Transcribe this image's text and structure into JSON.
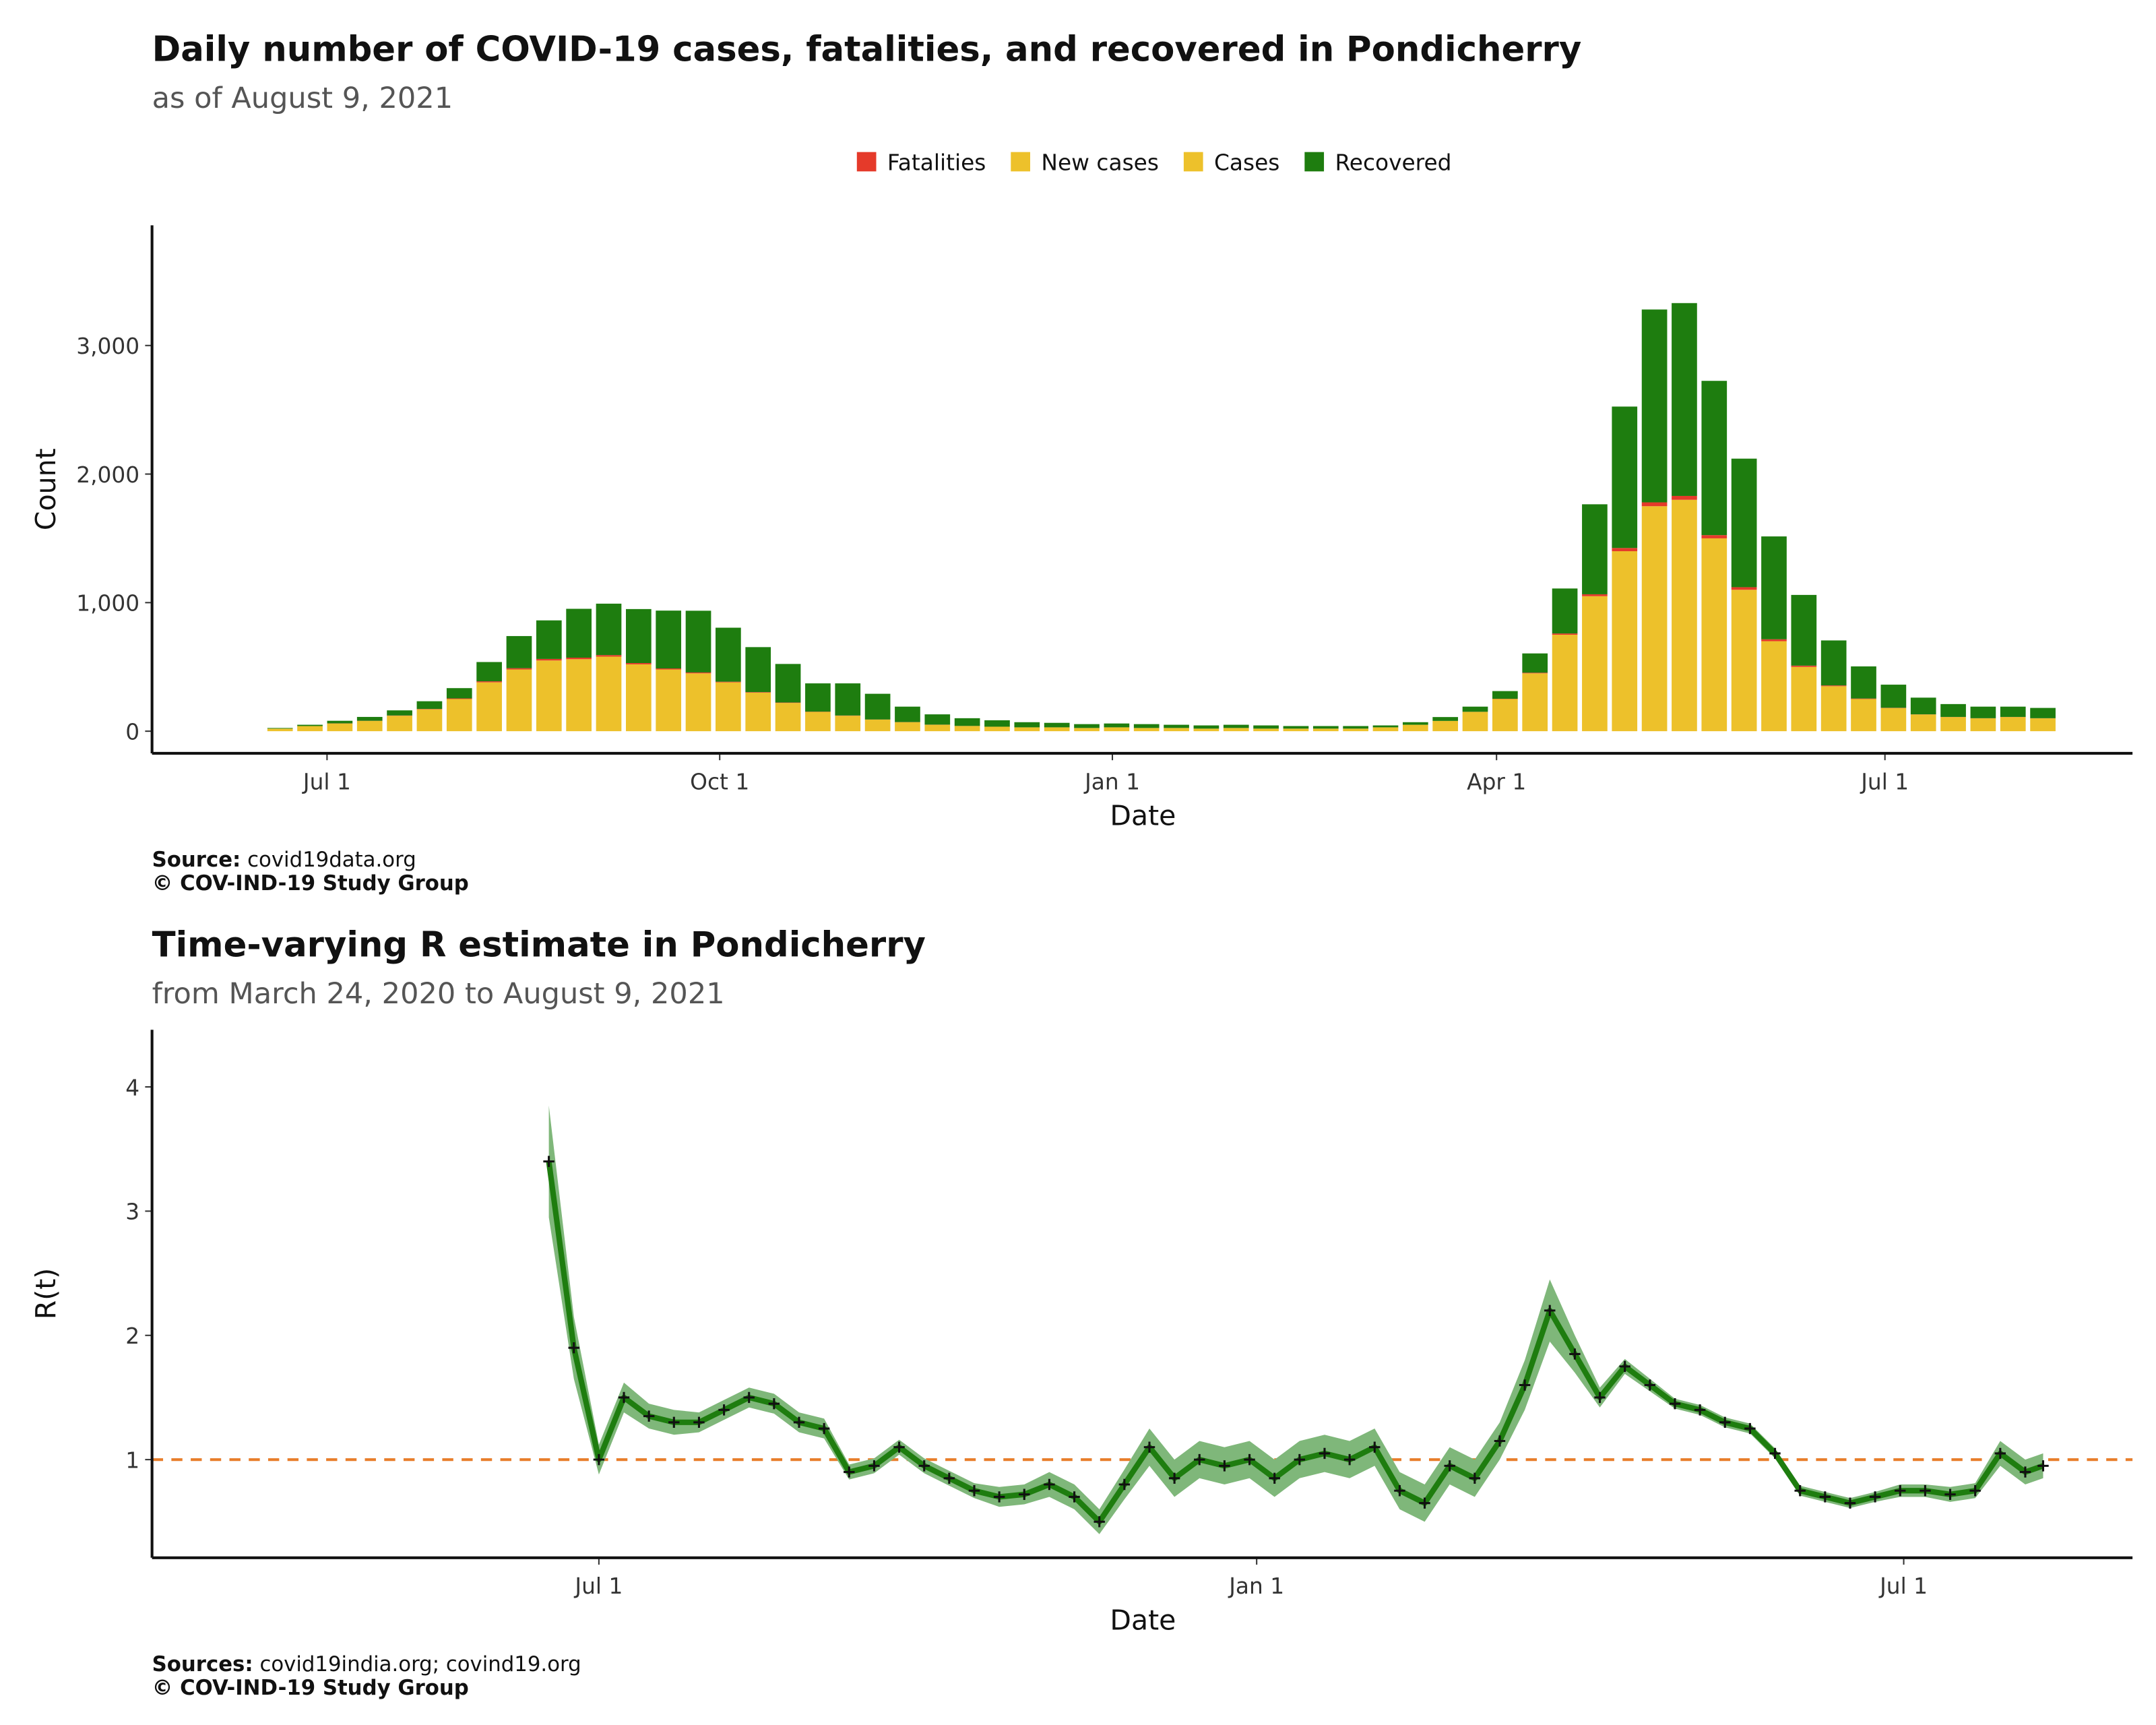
{
  "chart_data": [
    {
      "type": "bar",
      "stacked": true,
      "title": "Daily number of COVID-19 cases, fatalities, and recovered in Pondicherry",
      "subtitle": "as of August  9, 2021",
      "xlabel": "Date",
      "ylabel": "Count",
      "caption_bold": "Source:",
      "caption": "covid19data.org",
      "credit": "© COV-IND-19 Study Group",
      "legend": [
        {
          "name": "Fatalities",
          "color": "#e53a2a"
        },
        {
          "name": "New cases",
          "color": "#edc12b"
        },
        {
          "name": "Cases",
          "color": "#edc12b"
        },
        {
          "name": "Recovered",
          "color": "#1e7d0f"
        }
      ],
      "x": [
        "2020-06-20",
        "2020-06-27",
        "2020-07-04",
        "2020-07-11",
        "2020-07-18",
        "2020-07-25",
        "2020-08-01",
        "2020-08-08",
        "2020-08-15",
        "2020-08-22",
        "2020-08-29",
        "2020-09-05",
        "2020-09-12",
        "2020-09-19",
        "2020-09-26",
        "2020-10-03",
        "2020-10-10",
        "2020-10-17",
        "2020-10-24",
        "2020-10-31",
        "2020-11-07",
        "2020-11-14",
        "2020-11-21",
        "2020-11-28",
        "2020-12-05",
        "2020-12-12",
        "2020-12-19",
        "2020-12-26",
        "2021-01-02",
        "2021-01-09",
        "2021-01-16",
        "2021-01-23",
        "2021-01-30",
        "2021-02-06",
        "2021-02-13",
        "2021-02-20",
        "2021-02-27",
        "2021-03-06",
        "2021-03-13",
        "2021-03-20",
        "2021-03-27",
        "2021-04-03",
        "2021-04-10",
        "2021-04-17",
        "2021-04-24",
        "2021-05-01",
        "2021-05-08",
        "2021-05-15",
        "2021-05-22",
        "2021-05-29",
        "2021-06-05",
        "2021-06-12",
        "2021-06-19",
        "2021-06-26",
        "2021-07-03",
        "2021-07-10",
        "2021-07-17",
        "2021-07-24",
        "2021-07-31",
        "2021-08-07"
      ],
      "series": [
        {
          "name": "Cases",
          "color": "#edc12b",
          "values": [
            20,
            40,
            60,
            80,
            120,
            170,
            250,
            380,
            480,
            550,
            560,
            580,
            520,
            480,
            450,
            380,
            300,
            220,
            150,
            120,
            90,
            70,
            50,
            40,
            35,
            30,
            30,
            25,
            30,
            25,
            25,
            20,
            25,
            20,
            20,
            20,
            20,
            30,
            50,
            80,
            150,
            250,
            450,
            750,
            1050,
            1400,
            1750,
            1800,
            1500,
            1100,
            700,
            500,
            350,
            250,
            180,
            130,
            110,
            100,
            110,
            100
          ]
        },
        {
          "name": "Fatalities",
          "color": "#e53a2a",
          "values": [
            0,
            0,
            1,
            1,
            2,
            3,
            5,
            8,
            10,
            12,
            12,
            12,
            10,
            8,
            7,
            5,
            4,
            3,
            2,
            2,
            1,
            1,
            1,
            1,
            0,
            0,
            0,
            0,
            0,
            0,
            0,
            0,
            0,
            0,
            0,
            0,
            0,
            0,
            0,
            0,
            1,
            2,
            5,
            10,
            15,
            25,
            30,
            30,
            25,
            20,
            15,
            10,
            6,
            4,
            2,
            1,
            1,
            1,
            1,
            1
          ]
        },
        {
          "name": "Recovered",
          "color": "#1e7d0f",
          "values": [
            5,
            10,
            20,
            30,
            40,
            60,
            80,
            150,
            250,
            300,
            380,
            400,
            420,
            450,
            480,
            420,
            350,
            300,
            220,
            250,
            200,
            120,
            80,
            60,
            50,
            40,
            35,
            30,
            30,
            30,
            25,
            25,
            25,
            25,
            20,
            20,
            20,
            15,
            20,
            30,
            40,
            60,
            150,
            350,
            700,
            1100,
            1500,
            1500,
            1200,
            1000,
            800,
            550,
            350,
            250,
            180,
            130,
            100,
            90,
            80,
            80
          ]
        }
      ],
      "xlim": [
        "2020-05-21",
        "2021-08-28"
      ],
      "ylim": [
        -172,
        3935
      ],
      "xticks": [
        {
          "value": "2020-07-01",
          "label": "Jul 1"
        },
        {
          "value": "2020-10-01",
          "label": "Oct 1"
        },
        {
          "value": "2021-01-01",
          "label": "Jan 1"
        },
        {
          "value": "2021-04-01",
          "label": "Apr 1"
        },
        {
          "value": "2021-07-01",
          "label": "Jul 1"
        }
      ],
      "yticks": [
        0,
        {
          "value": 1000,
          "label": "1,000"
        },
        {
          "value": 2000,
          "label": "2,000"
        },
        {
          "value": 3000,
          "label": "3,000"
        }
      ]
    },
    {
      "type": "line",
      "title": "Time-varying R estimate in Pondicherry",
      "subtitle": "from March 24, 2020 to August  9, 2021",
      "xlabel": "Date",
      "ylabel": "R(t)",
      "caption_bold": "Sources:",
      "caption": "covid19india.org; covind19.org",
      "credit": "© COV-IND-19 Study Group",
      "hline": {
        "value": 1,
        "color": "#e87d2a"
      },
      "x": [
        "2020-06-17",
        "2020-06-24",
        "2020-07-01",
        "2020-07-08",
        "2020-07-15",
        "2020-07-22",
        "2020-07-29",
        "2020-08-05",
        "2020-08-12",
        "2020-08-19",
        "2020-08-26",
        "2020-09-02",
        "2020-09-09",
        "2020-09-16",
        "2020-09-23",
        "2020-09-30",
        "2020-10-07",
        "2020-10-14",
        "2020-10-21",
        "2020-10-28",
        "2020-11-04",
        "2020-11-11",
        "2020-11-18",
        "2020-11-25",
        "2020-12-02",
        "2020-12-09",
        "2020-12-16",
        "2020-12-23",
        "2020-12-30",
        "2021-01-06",
        "2021-01-13",
        "2021-01-20",
        "2021-01-27",
        "2021-02-03",
        "2021-02-10",
        "2021-02-17",
        "2021-02-24",
        "2021-03-03",
        "2021-03-10",
        "2021-03-17",
        "2021-03-24",
        "2021-03-31",
        "2021-04-07",
        "2021-04-14",
        "2021-04-21",
        "2021-04-28",
        "2021-05-05",
        "2021-05-12",
        "2021-05-19",
        "2021-05-26",
        "2021-06-02",
        "2021-06-09",
        "2021-06-16",
        "2021-06-23",
        "2021-06-30",
        "2021-07-07",
        "2021-07-14",
        "2021-07-21",
        "2021-07-28",
        "2021-08-04",
        "2021-08-09"
      ],
      "series": [
        {
          "color": "#1e7d0f",
          "band_color": "#7fb77a",
          "marker_color": "#111111",
          "values": [
            3.4,
            1.9,
            1.0,
            1.5,
            1.35,
            1.3,
            1.3,
            1.4,
            1.5,
            1.45,
            1.3,
            1.25,
            0.9,
            0.95,
            1.1,
            0.95,
            0.85,
            0.75,
            0.7,
            0.72,
            0.8,
            0.7,
            0.5,
            0.8,
            1.1,
            0.85,
            1.0,
            0.95,
            1.0,
            0.85,
            1.0,
            1.05,
            1.0,
            1.1,
            0.75,
            0.65,
            0.95,
            0.85,
            1.15,
            1.6,
            2.2,
            1.85,
            1.5,
            1.75,
            1.6,
            1.45,
            1.4,
            1.3,
            1.25,
            1.05,
            0.75,
            0.7,
            0.65,
            0.7,
            0.75,
            0.75,
            0.72,
            0.75,
            1.05,
            0.9,
            0.95
          ],
          "lower": [
            2.95,
            1.65,
            0.88,
            1.38,
            1.25,
            1.2,
            1.22,
            1.32,
            1.42,
            1.37,
            1.22,
            1.17,
            0.84,
            0.89,
            1.04,
            0.89,
            0.79,
            0.69,
            0.62,
            0.64,
            0.7,
            0.6,
            0.4,
            0.68,
            0.95,
            0.7,
            0.85,
            0.8,
            0.85,
            0.7,
            0.85,
            0.9,
            0.85,
            0.95,
            0.6,
            0.5,
            0.8,
            0.7,
            1.0,
            1.4,
            1.95,
            1.7,
            1.42,
            1.69,
            1.55,
            1.41,
            1.36,
            1.26,
            1.21,
            1.01,
            0.71,
            0.66,
            0.61,
            0.66,
            0.7,
            0.7,
            0.66,
            0.69,
            0.95,
            0.8,
            0.85
          ],
          "upper": [
            3.85,
            2.15,
            1.12,
            1.62,
            1.45,
            1.4,
            1.38,
            1.48,
            1.58,
            1.53,
            1.38,
            1.33,
            0.96,
            1.01,
            1.16,
            1.01,
            0.91,
            0.81,
            0.78,
            0.8,
            0.9,
            0.8,
            0.6,
            0.92,
            1.25,
            1.0,
            1.15,
            1.1,
            1.15,
            1.0,
            1.15,
            1.2,
            1.15,
            1.25,
            0.9,
            0.8,
            1.1,
            1.0,
            1.3,
            1.8,
            2.45,
            2.0,
            1.58,
            1.81,
            1.65,
            1.49,
            1.44,
            1.34,
            1.29,
            1.09,
            0.79,
            0.74,
            0.69,
            0.74,
            0.8,
            0.8,
            0.78,
            0.81,
            1.15,
            1.0,
            1.05
          ]
        }
      ],
      "xlim": [
        "2020-02-27",
        "2021-09-03"
      ],
      "ylim": [
        0.21,
        4.46
      ],
      "xticks": [
        {
          "value": "2020-07-01",
          "label": "Jul 1"
        },
        {
          "value": "2021-01-01",
          "label": "Jan 1"
        },
        {
          "value": "2021-07-01",
          "label": "Jul 1"
        }
      ],
      "yticks": [
        1,
        2,
        3,
        4
      ]
    }
  ]
}
